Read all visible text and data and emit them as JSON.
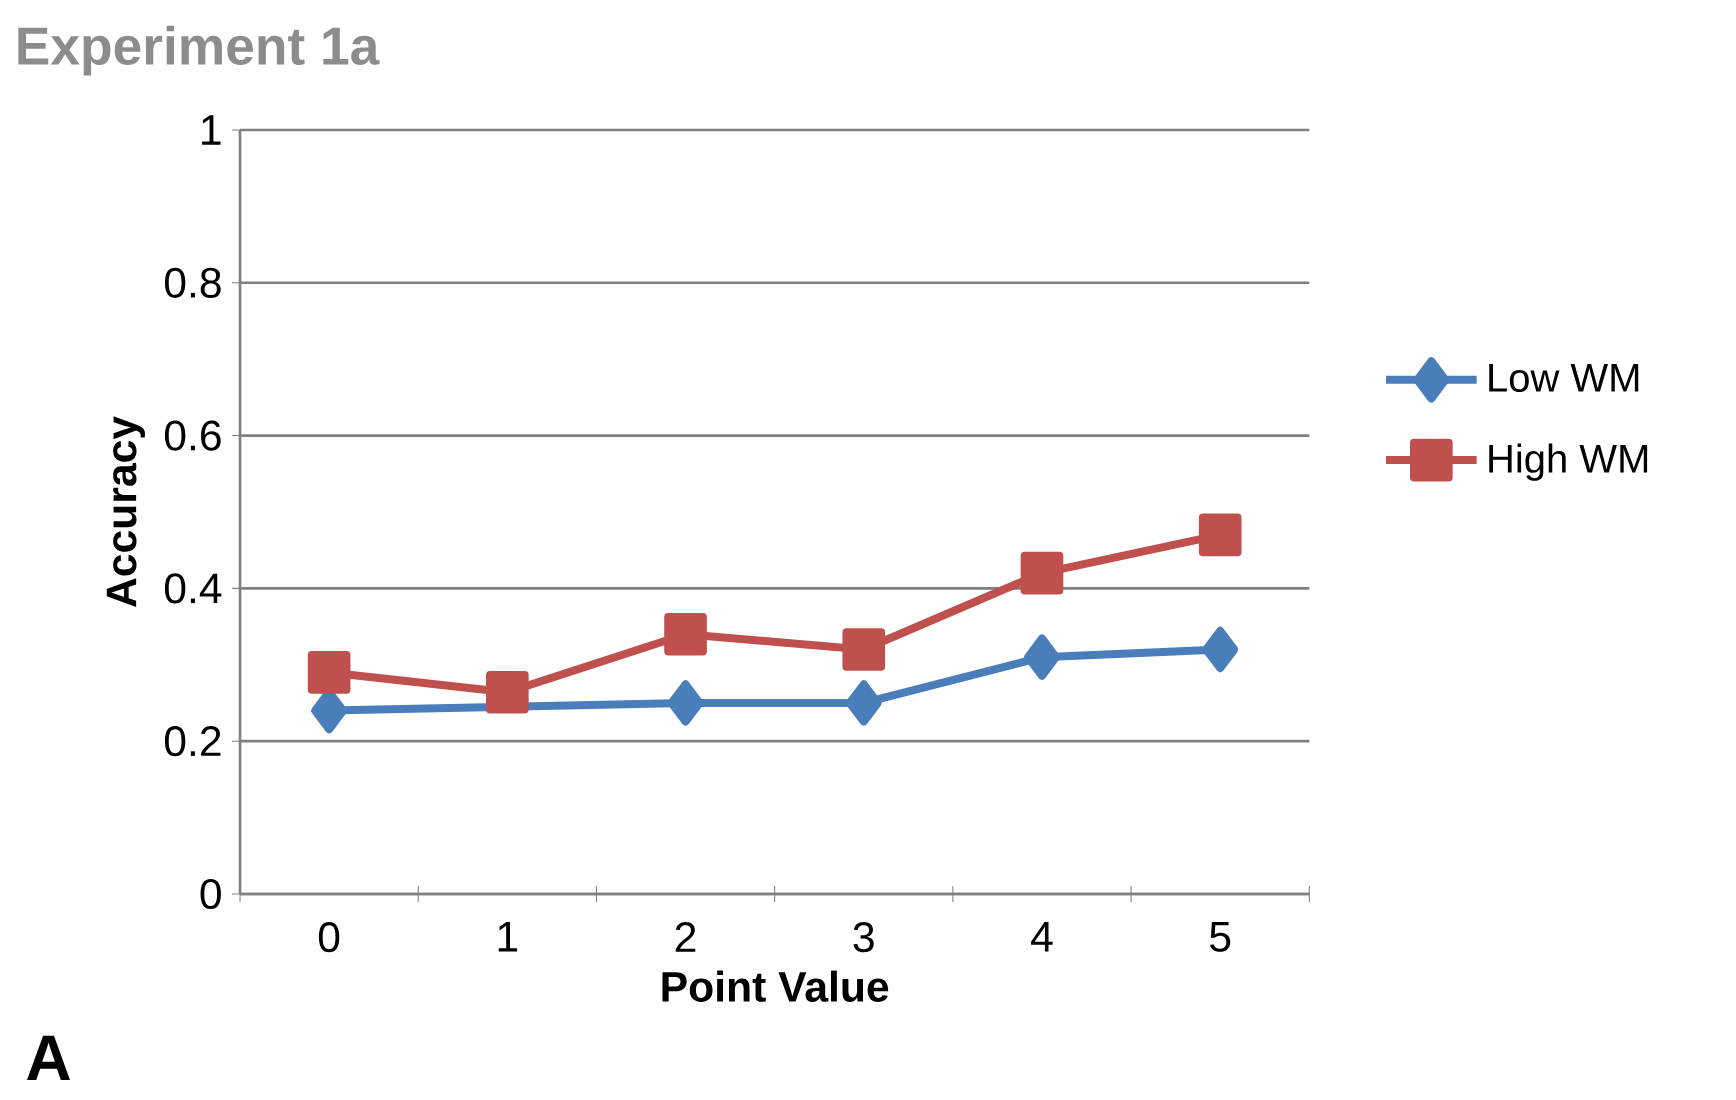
{
  "chart_data": {
    "type": "line",
    "title": "Experiment 1a",
    "xlabel": "Point Value",
    "ylabel": "Accuracy",
    "annotations": [
      "A"
    ],
    "categories": [
      "0",
      "1",
      "2",
      "3",
      "4",
      "5"
    ],
    "series": [
      {
        "name": "Low WM",
        "color": "#4a7ebb",
        "marker": "diamond",
        "values": [
          0.24,
          null,
          0.25,
          0.25,
          0.31,
          0.32
        ]
      },
      {
        "name": "High WM",
        "color": "#c0504d",
        "marker": "square",
        "values": [
          0.29,
          0.264,
          0.34,
          0.32,
          0.42,
          0.47
        ]
      }
    ],
    "ylim": [
      0,
      1
    ],
    "yticks": [
      0,
      0.2,
      0.4,
      0.6,
      0.8,
      1
    ],
    "grid": "y",
    "legend": "right",
    "line_style": "solid"
  }
}
